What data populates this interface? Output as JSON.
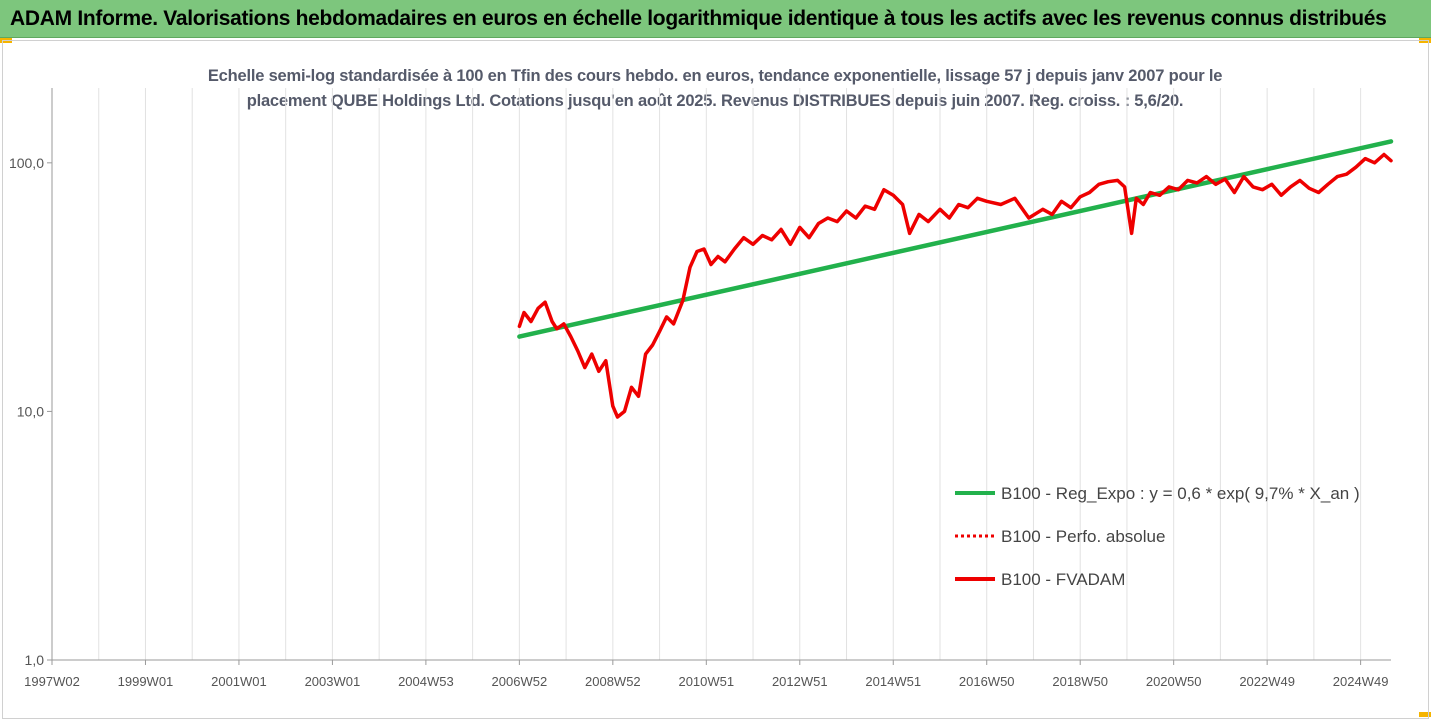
{
  "header": {
    "title": "ADAM Informe. Valorisations hebdomadaires en euros en échelle logarithmique identique à tous les actifs avec les revenus connus distribués"
  },
  "colors": {
    "banner": "#7dc67d",
    "corner_accent": "#f5b400",
    "regression_line": "#22b14c",
    "fvadam_line": "#ee0000",
    "perfo_line": "#ee0000"
  },
  "chart_data": {
    "type": "line",
    "subtitle_lines": [
      "Echelle semi-log standardisée à 100 en Tfin des cours hebdo. en euros, tendance exponentielle, lissage 57 j depuis janv 2007 pour le",
      "placement QUBE Holdings Ltd. Cotations jusqu'en août 2025. Revenus DISTRIBUES depuis juin 2007. Reg. croiss. : 5,6/20."
    ],
    "y_scale": "log",
    "ylim": [
      1,
      200
    ],
    "ytick_values": [
      1,
      10,
      100
    ],
    "ytick_labels": [
      "1,0",
      "10,0",
      "100,0"
    ],
    "xlim": [
      1997.0,
      2025.65
    ],
    "x_ticks": [
      {
        "label": "1997W02",
        "x": 1997.0
      },
      {
        "label": "1999W01",
        "x": 1999.0
      },
      {
        "label": "2001W01",
        "x": 2001.0
      },
      {
        "label": "2003W01",
        "x": 2003.0
      },
      {
        "label": "2004W53",
        "x": 2005.0
      },
      {
        "label": "2006W52",
        "x": 2007.0
      },
      {
        "label": "2008W52",
        "x": 2009.0
      },
      {
        "label": "2010W51",
        "x": 2011.0
      },
      {
        "label": "2012W51",
        "x": 2013.0
      },
      {
        "label": "2014W51",
        "x": 2015.0
      },
      {
        "label": "2016W50",
        "x": 2017.0
      },
      {
        "label": "2018W50",
        "x": 2019.0
      },
      {
        "label": "2020W50",
        "x": 2021.0
      },
      {
        "label": "2022W49",
        "x": 2023.0
      },
      {
        "label": "2024W49",
        "x": 2025.0
      }
    ],
    "grid": "vertical",
    "legend_position": "lower-right",
    "legend": [
      "B100 - Reg_Expo : y = 0,6 * exp( 9,7% *  X_an )",
      "B100 - Perfo. absolue",
      "B100 - FVADAM"
    ],
    "series": [
      {
        "name": "B100 - Reg_Expo : y = 0,6 * exp( 9,7% *  X_an )",
        "style": "solid-green",
        "x": [
          2007.0,
          2025.65
        ],
        "y": [
          20.0,
          122.0
        ]
      },
      {
        "name": "B100 - Perfo. absolue",
        "style": "dotted-red",
        "x": [],
        "y": []
      },
      {
        "name": "B100 - FVADAM",
        "style": "solid-red",
        "x": [
          2007.0,
          2007.1,
          2007.25,
          2007.4,
          2007.55,
          2007.7,
          2007.8,
          2007.95,
          2008.1,
          2008.25,
          2008.4,
          2008.55,
          2008.7,
          2008.85,
          2009.0,
          2009.1,
          2009.25,
          2009.4,
          2009.55,
          2009.7,
          2009.85,
          2010.0,
          2010.15,
          2010.3,
          2010.5,
          2010.65,
          2010.8,
          2010.95,
          2011.1,
          2011.25,
          2011.4,
          2011.6,
          2011.8,
          2012.0,
          2012.2,
          2012.4,
          2012.6,
          2012.8,
          2013.0,
          2013.2,
          2013.4,
          2013.6,
          2013.8,
          2014.0,
          2014.2,
          2014.4,
          2014.6,
          2014.8,
          2015.0,
          2015.2,
          2015.35,
          2015.55,
          2015.75,
          2016.0,
          2016.2,
          2016.4,
          2016.6,
          2016.8,
          2017.0,
          2017.3,
          2017.6,
          2017.9,
          2018.2,
          2018.4,
          2018.6,
          2018.8,
          2019.0,
          2019.2,
          2019.4,
          2019.6,
          2019.8,
          2019.95,
          2020.1,
          2020.2,
          2020.35,
          2020.5,
          2020.7,
          2020.9,
          2021.1,
          2021.3,
          2021.5,
          2021.7,
          2021.9,
          2022.1,
          2022.3,
          2022.5,
          2022.7,
          2022.9,
          2023.1,
          2023.3,
          2023.5,
          2023.7,
          2023.9,
          2024.1,
          2024.3,
          2024.5,
          2024.7,
          2024.9,
          2025.1,
          2025.3,
          2025.5,
          2025.65
        ],
        "y": [
          22.0,
          25.0,
          23.0,
          26.0,
          27.5,
          23.0,
          21.5,
          22.5,
          20.0,
          17.5,
          15.0,
          17.0,
          14.5,
          16.0,
          10.5,
          9.5,
          10.0,
          12.5,
          11.5,
          17.0,
          18.5,
          21.0,
          24.0,
          22.5,
          28.0,
          38.0,
          44.0,
          45.0,
          39.0,
          42.0,
          40.0,
          45.0,
          50.0,
          47.0,
          51.0,
          49.0,
          54.0,
          47.0,
          55.0,
          50.0,
          57.0,
          60.0,
          58.0,
          64.0,
          60.0,
          67.0,
          65.0,
          78.0,
          74.0,
          68.0,
          52.0,
          62.0,
          58.0,
          65.0,
          60.0,
          68.0,
          66.0,
          72.0,
          70.0,
          68.0,
          72.0,
          60.0,
          65.0,
          62.0,
          70.0,
          66.0,
          73.0,
          76.0,
          82.0,
          84.0,
          85.0,
          80.0,
          52.0,
          72.0,
          68.0,
          76.0,
          74.0,
          80.0,
          78.0,
          85.0,
          83.0,
          88.0,
          82.0,
          86.0,
          76.0,
          88.0,
          80.0,
          78.0,
          82.0,
          74.0,
          80.0,
          85.0,
          79.0,
          76.0,
          82.0,
          88.0,
          90.0,
          96.0,
          104.0,
          100.0,
          108.0,
          102.0
        ]
      }
    ]
  }
}
